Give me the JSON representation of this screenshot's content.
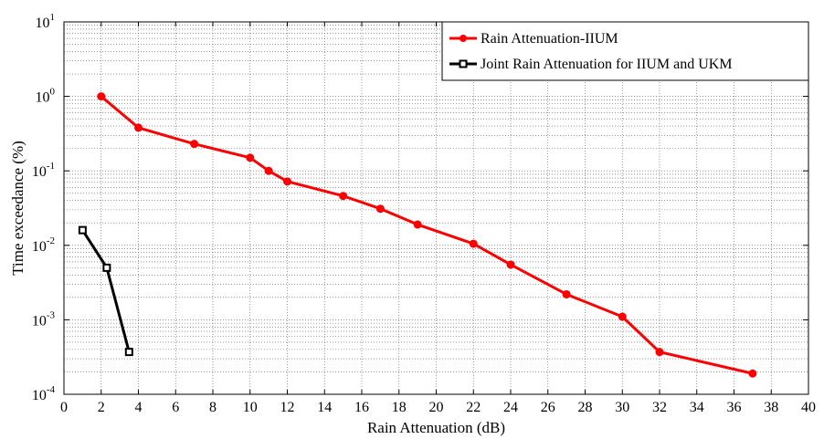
{
  "chart_data": {
    "type": "line",
    "xlabel": "Rain Attenuation (dB)",
    "ylabel": "Time exceedance (%)",
    "xlim": [
      0,
      40
    ],
    "ylim": [
      0.0001,
      10
    ],
    "yscale": "log",
    "grid": true,
    "legend_position": "top-right",
    "x_ticks": [
      0,
      2,
      4,
      6,
      8,
      10,
      12,
      14,
      16,
      18,
      20,
      22,
      24,
      26,
      28,
      30,
      32,
      34,
      36,
      38,
      40
    ],
    "y_ticks": [
      {
        "base": "10",
        "exp": "-4",
        "value": 0.0001
      },
      {
        "base": "10",
        "exp": "-3",
        "value": 0.001
      },
      {
        "base": "10",
        "exp": "-2",
        "value": 0.01
      },
      {
        "base": "10",
        "exp": "-1",
        "value": 0.1
      },
      {
        "base": "10",
        "exp": "0",
        "value": 1
      },
      {
        "base": "10",
        "exp": "1",
        "value": 10
      }
    ],
    "series": [
      {
        "name": "Rain Attenuation-IIUM",
        "color": "#ff0000",
        "marker": "circle",
        "points": [
          [
            2,
            1.0
          ],
          [
            4,
            0.38
          ],
          [
            7,
            0.23
          ],
          [
            10,
            0.15
          ],
          [
            11,
            0.1
          ],
          [
            12,
            0.072
          ],
          [
            15,
            0.046
          ],
          [
            17,
            0.031
          ],
          [
            19,
            0.019
          ],
          [
            22,
            0.0105
          ],
          [
            24,
            0.0055
          ],
          [
            27,
            0.0022
          ],
          [
            30,
            0.0011
          ],
          [
            32,
            0.00037
          ],
          [
            37,
            0.00019
          ]
        ]
      },
      {
        "name": "Joint Rain Attenuation for IIUM and UKM",
        "color": "#000000",
        "marker": "square",
        "points": [
          [
            1,
            0.016
          ],
          [
            2.3,
            0.005
          ],
          [
            3.5,
            0.00037
          ]
        ]
      }
    ]
  }
}
